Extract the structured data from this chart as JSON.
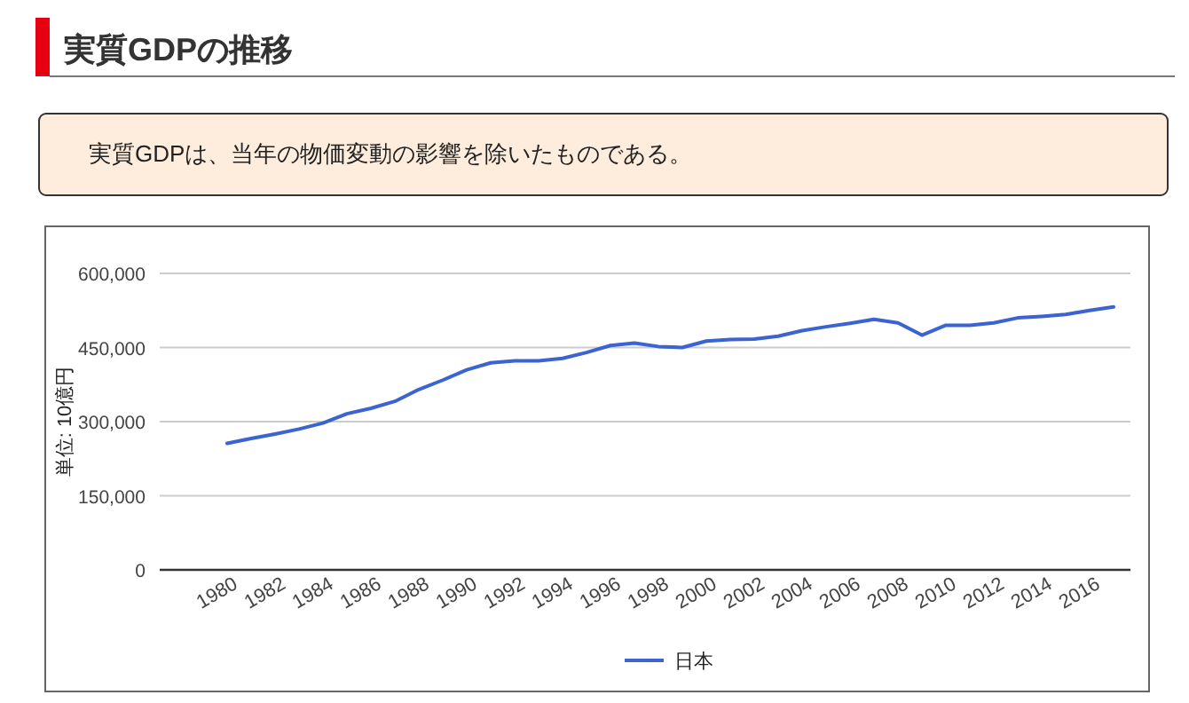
{
  "chart_data": {
    "type": "line",
    "title": "実質GDPの推移",
    "annotations": [
      "実質GDPは、当年の物価変動の影響を除いたものである。"
    ],
    "ylabel": "単位: 10億円",
    "categories": [
      "1980",
      null,
      "1982",
      null,
      "1984",
      null,
      "1986",
      null,
      "1988",
      null,
      "1990",
      null,
      "1992",
      null,
      "1994",
      null,
      "1996",
      null,
      "1998",
      null,
      "2000",
      null,
      "2002",
      null,
      "2004",
      null,
      "2006",
      null,
      "2008",
      null,
      "2010",
      null,
      "2012",
      null,
      "2014",
      null,
      "2016",
      null
    ],
    "series": [
      {
        "name": "日本",
        "color": "#3b63d1",
        "values": [
          256000,
          266000,
          275000,
          285000,
          297000,
          316000,
          327000,
          341000,
          365000,
          384000,
          405000,
          419000,
          423000,
          423000,
          428000,
          440000,
          454000,
          459000,
          452000,
          450000,
          463000,
          466000,
          467000,
          473000,
          484000,
          492000,
          499000,
          507000,
          500000,
          475000,
          495000,
          495000,
          500000,
          510000,
          513000,
          517000,
          525000,
          532000
        ]
      }
    ],
    "ylim": [
      0,
      600000
    ],
    "yticks": [
      0,
      {
        "value": 150000,
        "label": "150,000"
      },
      {
        "value": 300000,
        "label": "300,000"
      },
      {
        "value": 450000,
        "label": "450,000"
      },
      {
        "value": 600000,
        "label": "600,000"
      }
    ],
    "grid": "y",
    "legend": "bottom"
  }
}
